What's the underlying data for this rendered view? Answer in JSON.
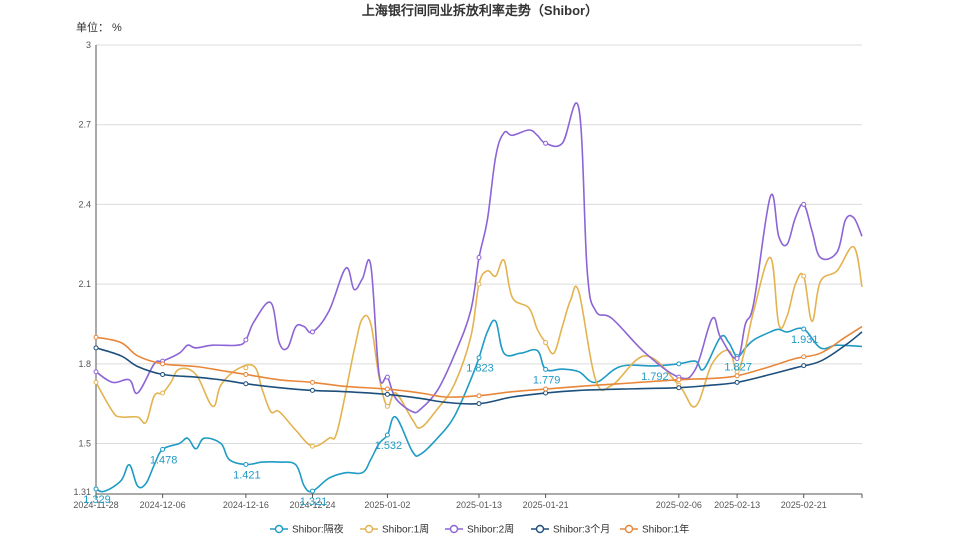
{
  "chart_data": {
    "type": "line",
    "title": "上海银行间同业拆放利率走势（Shibor）",
    "unit_label": "单位： %",
    "ylim": [
      1.31,
      3.0
    ],
    "y_ticks": [
      "1.31",
      "1.5",
      "1.8",
      "2.1",
      "2.4",
      "2.7",
      "3"
    ],
    "x_range": [
      "2024-11-28",
      "2025-02-28"
    ],
    "x_ticks": [
      "2024-11-28",
      "2024-12-06",
      "2024-12-16",
      "2024-12-24",
      "2025-01-02",
      "2025-01-13",
      "2025-01-21",
      "2025-02-06",
      "2025-02-13",
      "2025-02-21"
    ],
    "grid": true,
    "legend_position": "bottom",
    "series": [
      {
        "name": "Shibor:隔夜",
        "color": "#1f9bc5",
        "points": [
          [
            "2024-11-28",
            1.329
          ],
          [
            "2024-11-29",
            1.32
          ],
          [
            "2024-12-01",
            1.36
          ],
          [
            "2024-12-02",
            1.42
          ],
          [
            "2024-12-03",
            1.34
          ],
          [
            "2024-12-04",
            1.35
          ],
          [
            "2024-12-05",
            1.42
          ],
          [
            "2024-12-06",
            1.478
          ],
          [
            "2024-12-08",
            1.5
          ],
          [
            "2024-12-09",
            1.52
          ],
          [
            "2024-12-10",
            1.48
          ],
          [
            "2024-12-11",
            1.52
          ],
          [
            "2024-12-13",
            1.5
          ],
          [
            "2024-12-14",
            1.44
          ],
          [
            "2024-12-16",
            1.421
          ],
          [
            "2024-12-18",
            1.43
          ],
          [
            "2024-12-20",
            1.43
          ],
          [
            "2024-12-22",
            1.42
          ],
          [
            "2024-12-23",
            1.34
          ],
          [
            "2024-12-24",
            1.321
          ],
          [
            "2024-12-26",
            1.37
          ],
          [
            "2024-12-28",
            1.39
          ],
          [
            "2024-12-30",
            1.39
          ],
          [
            "2024-12-31",
            1.44
          ],
          [
            "2025-01-01",
            1.5
          ],
          [
            "2025-01-02",
            1.532
          ],
          [
            "2025-01-03",
            1.6
          ],
          [
            "2025-01-05",
            1.47
          ],
          [
            "2025-01-06",
            1.46
          ],
          [
            "2025-01-08",
            1.52
          ],
          [
            "2025-01-10",
            1.6
          ],
          [
            "2025-01-12",
            1.74
          ],
          [
            "2025-01-13",
            1.823
          ],
          [
            "2025-01-14",
            1.92
          ],
          [
            "2025-01-15",
            1.96
          ],
          [
            "2025-01-16",
            1.84
          ],
          [
            "2025-01-18",
            1.84
          ],
          [
            "2025-01-20",
            1.85
          ],
          [
            "2025-01-21",
            1.779
          ],
          [
            "2025-01-23",
            1.78
          ],
          [
            "2025-01-25",
            1.77
          ],
          [
            "2025-01-27",
            1.73
          ],
          [
            "2025-01-30",
            1.79
          ],
          [
            "2025-02-03",
            1.792
          ],
          [
            "2025-02-06",
            1.8
          ],
          [
            "2025-02-08",
            1.81
          ],
          [
            "2025-02-09",
            1.78
          ],
          [
            "2025-02-11",
            1.9
          ],
          [
            "2025-02-12",
            1.88
          ],
          [
            "2025-02-13",
            1.827
          ],
          [
            "2025-02-14",
            1.86
          ],
          [
            "2025-02-15",
            1.89
          ],
          [
            "2025-02-17",
            1.92
          ],
          [
            "2025-02-18",
            1.93
          ],
          [
            "2025-02-19",
            1.92
          ],
          [
            "2025-02-21",
            1.931
          ],
          [
            "2025-02-23",
            1.86
          ],
          [
            "2025-02-25",
            1.87
          ],
          [
            "2025-02-28",
            1.865
          ]
        ],
        "labels": [
          [
            "2024-11-28",
            1.329,
            "1.329"
          ],
          [
            "2024-12-06",
            1.478,
            "1.478"
          ],
          [
            "2024-12-16",
            1.421,
            "1.421"
          ],
          [
            "2024-12-24",
            1.321,
            "1.321"
          ],
          [
            "2025-01-02",
            1.532,
            "1.532"
          ],
          [
            "2025-01-13",
            1.823,
            "1.823"
          ],
          [
            "2025-01-21",
            1.779,
            "1.779"
          ],
          [
            "2025-02-03",
            1.792,
            "1.792"
          ],
          [
            "2025-02-13",
            1.827,
            "1.827"
          ],
          [
            "2025-02-21",
            1.931,
            "1.931"
          ]
        ]
      },
      {
        "name": "Shibor:1周",
        "color": "#e3b350",
        "points": [
          [
            "2024-11-28",
            1.73
          ],
          [
            "2024-11-30",
            1.62
          ],
          [
            "2024-12-01",
            1.6
          ],
          [
            "2024-12-03",
            1.6
          ],
          [
            "2024-12-04",
            1.58
          ],
          [
            "2024-12-05",
            1.68
          ],
          [
            "2024-12-06",
            1.69
          ],
          [
            "2024-12-07",
            1.73
          ],
          [
            "2024-12-08",
            1.78
          ],
          [
            "2024-12-10",
            1.76
          ],
          [
            "2024-12-12",
            1.64
          ],
          [
            "2024-12-13",
            1.72
          ],
          [
            "2024-12-15",
            1.78
          ],
          [
            "2024-12-17",
            1.79
          ],
          [
            "2024-12-18",
            1.7
          ],
          [
            "2024-12-19",
            1.62
          ],
          [
            "2024-12-20",
            1.62
          ],
          [
            "2024-12-22",
            1.55
          ],
          [
            "2024-12-24",
            1.49
          ],
          [
            "2024-12-26",
            1.52
          ],
          [
            "2024-12-27",
            1.55
          ],
          [
            "2024-12-29",
            1.85
          ],
          [
            "2024-12-30",
            1.97
          ],
          [
            "2024-12-31",
            1.95
          ],
          [
            "2025-01-01",
            1.75
          ],
          [
            "2025-01-02",
            1.64
          ],
          [
            "2025-01-03",
            1.69
          ],
          [
            "2025-01-05",
            1.59
          ],
          [
            "2025-01-06",
            1.56
          ],
          [
            "2025-01-08",
            1.63
          ],
          [
            "2025-01-10",
            1.72
          ],
          [
            "2025-01-12",
            1.9
          ],
          [
            "2025-01-13",
            2.1
          ],
          [
            "2025-01-14",
            2.15
          ],
          [
            "2025-01-15",
            2.13
          ],
          [
            "2025-01-16",
            2.19
          ],
          [
            "2025-01-17",
            2.05
          ],
          [
            "2025-01-19",
            2.01
          ],
          [
            "2025-01-20",
            1.93
          ],
          [
            "2025-01-21",
            1.88
          ],
          [
            "2025-01-22",
            1.84
          ],
          [
            "2025-01-23",
            1.94
          ],
          [
            "2025-01-24",
            2.04
          ],
          [
            "2025-01-25",
            2.07
          ],
          [
            "2025-01-27",
            1.74
          ],
          [
            "2025-01-29",
            1.72
          ],
          [
            "2025-02-02",
            1.83
          ],
          [
            "2025-02-06",
            1.72
          ],
          [
            "2025-02-08",
            1.64
          ],
          [
            "2025-02-10",
            1.8
          ],
          [
            "2025-02-12",
            1.85
          ],
          [
            "2025-02-13",
            1.77
          ],
          [
            "2025-02-14",
            1.86
          ],
          [
            "2025-02-15",
            2.0
          ],
          [
            "2025-02-17",
            2.2
          ],
          [
            "2025-02-18",
            1.95
          ],
          [
            "2025-02-19",
            1.98
          ],
          [
            "2025-02-20",
            2.1
          ],
          [
            "2025-02-21",
            2.13
          ],
          [
            "2025-02-22",
            1.96
          ],
          [
            "2025-02-23",
            2.11
          ],
          [
            "2025-02-25",
            2.15
          ],
          [
            "2025-02-27",
            2.24
          ],
          [
            "2025-02-28",
            2.09
          ]
        ]
      },
      {
        "name": "Shibor:2周",
        "color": "#8c64d6",
        "points": [
          [
            "2024-11-28",
            1.77
          ],
          [
            "2024-11-30",
            1.73
          ],
          [
            "2024-12-02",
            1.74
          ],
          [
            "2024-12-03",
            1.69
          ],
          [
            "2024-12-05",
            1.8
          ],
          [
            "2024-12-06",
            1.81
          ],
          [
            "2024-12-08",
            1.84
          ],
          [
            "2024-12-09",
            1.87
          ],
          [
            "2024-12-10",
            1.86
          ],
          [
            "2024-12-12",
            1.87
          ],
          [
            "2024-12-15",
            1.87
          ],
          [
            "2024-12-16",
            1.89
          ],
          [
            "2024-12-17",
            1.96
          ],
          [
            "2024-12-19",
            2.03
          ],
          [
            "2024-12-20",
            1.88
          ],
          [
            "2024-12-21",
            1.86
          ],
          [
            "2024-12-22",
            1.94
          ],
          [
            "2024-12-23",
            1.94
          ],
          [
            "2024-12-24",
            1.92
          ],
          [
            "2024-12-26",
            2.0
          ],
          [
            "2024-12-28",
            2.16
          ],
          [
            "2024-12-29",
            2.08
          ],
          [
            "2024-12-30",
            2.12
          ],
          [
            "2024-12-31",
            2.17
          ],
          [
            "2025-01-01",
            1.76
          ],
          [
            "2025-01-02",
            1.75
          ],
          [
            "2025-01-03",
            1.67
          ],
          [
            "2025-01-05",
            1.62
          ],
          [
            "2025-01-06",
            1.63
          ],
          [
            "2025-01-08",
            1.7
          ],
          [
            "2025-01-10",
            1.83
          ],
          [
            "2025-01-12",
            2.0
          ],
          [
            "2025-01-13",
            2.2
          ],
          [
            "2025-01-14",
            2.34
          ],
          [
            "2025-01-15",
            2.58
          ],
          [
            "2025-01-16",
            2.67
          ],
          [
            "2025-01-17",
            2.66
          ],
          [
            "2025-01-19",
            2.68
          ],
          [
            "2025-01-20",
            2.66
          ],
          [
            "2025-01-21",
            2.63
          ],
          [
            "2025-01-23",
            2.63
          ],
          [
            "2025-01-25",
            2.76
          ],
          [
            "2025-01-26",
            2.15
          ],
          [
            "2025-01-27",
            2.0
          ],
          [
            "2025-01-29",
            1.97
          ],
          [
            "2025-02-02",
            1.84
          ],
          [
            "2025-02-06",
            1.75
          ],
          [
            "2025-02-08",
            1.78
          ],
          [
            "2025-02-10",
            1.97
          ],
          [
            "2025-02-11",
            1.9
          ],
          [
            "2025-02-13",
            1.82
          ],
          [
            "2025-02-14",
            1.95
          ],
          [
            "2025-02-15",
            2.03
          ],
          [
            "2025-02-17",
            2.43
          ],
          [
            "2025-02-18",
            2.28
          ],
          [
            "2025-02-19",
            2.25
          ],
          [
            "2025-02-20",
            2.35
          ],
          [
            "2025-02-21",
            2.4
          ],
          [
            "2025-02-22",
            2.3
          ],
          [
            "2025-02-23",
            2.2
          ],
          [
            "2025-02-25",
            2.22
          ],
          [
            "2025-02-26",
            2.34
          ],
          [
            "2025-02-27",
            2.35
          ],
          [
            "2025-02-28",
            2.28
          ]
        ]
      },
      {
        "name": "Shibor:3个月",
        "color": "#1d4f7c",
        "points": [
          [
            "2024-11-28",
            1.86
          ],
          [
            "2024-12-01",
            1.83
          ],
          [
            "2024-12-03",
            1.79
          ],
          [
            "2024-12-06",
            1.76
          ],
          [
            "2024-12-10",
            1.75
          ],
          [
            "2024-12-13",
            1.74
          ],
          [
            "2024-12-16",
            1.725
          ],
          [
            "2024-12-20",
            1.71
          ],
          [
            "2024-12-24",
            1.7
          ],
          [
            "2024-12-28",
            1.695
          ],
          [
            "2025-01-02",
            1.685
          ],
          [
            "2025-01-06",
            1.67
          ],
          [
            "2025-01-09",
            1.655
          ],
          [
            "2025-01-13",
            1.65
          ],
          [
            "2025-01-17",
            1.675
          ],
          [
            "2025-01-21",
            1.69
          ],
          [
            "2025-01-25",
            1.7
          ],
          [
            "2025-01-30",
            1.705
          ],
          [
            "2025-02-06",
            1.71
          ],
          [
            "2025-02-10",
            1.72
          ],
          [
            "2025-02-13",
            1.73
          ],
          [
            "2025-02-17",
            1.76
          ],
          [
            "2025-02-20",
            1.785
          ],
          [
            "2025-02-23",
            1.81
          ],
          [
            "2025-02-26",
            1.87
          ],
          [
            "2025-02-28",
            1.92
          ]
        ]
      },
      {
        "name": "Shibor:1年",
        "color": "#e8873a",
        "points": [
          [
            "2024-11-28",
            1.9
          ],
          [
            "2024-12-01",
            1.88
          ],
          [
            "2024-12-03",
            1.83
          ],
          [
            "2024-12-06",
            1.8
          ],
          [
            "2024-12-10",
            1.79
          ],
          [
            "2024-12-13",
            1.775
          ],
          [
            "2024-12-16",
            1.76
          ],
          [
            "2024-12-20",
            1.74
          ],
          [
            "2024-12-24",
            1.73
          ],
          [
            "2024-12-28",
            1.715
          ],
          [
            "2025-01-02",
            1.705
          ],
          [
            "2025-01-06",
            1.69
          ],
          [
            "2025-01-09",
            1.675
          ],
          [
            "2025-01-13",
            1.68
          ],
          [
            "2025-01-17",
            1.695
          ],
          [
            "2025-01-21",
            1.705
          ],
          [
            "2025-01-25",
            1.715
          ],
          [
            "2025-01-30",
            1.725
          ],
          [
            "2025-02-06",
            1.74
          ],
          [
            "2025-02-10",
            1.745
          ],
          [
            "2025-02-13",
            1.755
          ],
          [
            "2025-02-17",
            1.79
          ],
          [
            "2025-02-20",
            1.82
          ],
          [
            "2025-02-23",
            1.84
          ],
          [
            "2025-02-26",
            1.9
          ],
          [
            "2025-02-28",
            1.94
          ]
        ]
      }
    ]
  }
}
